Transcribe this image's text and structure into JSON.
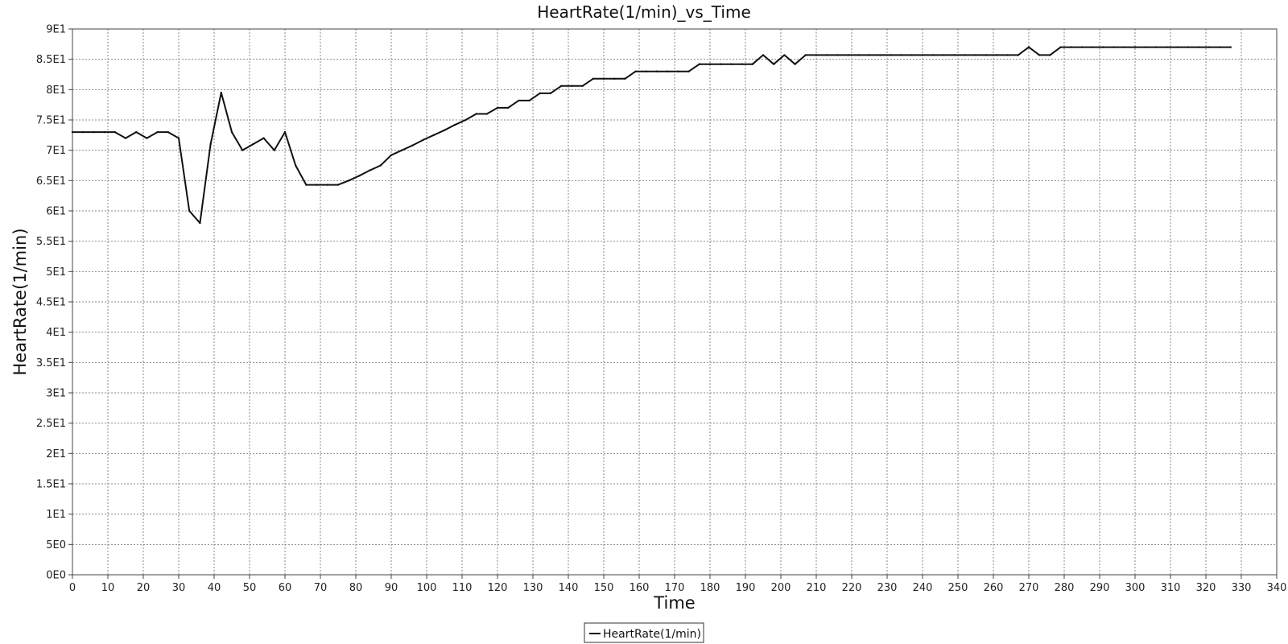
{
  "chart_data": {
    "type": "line",
    "title": "HeartRate(1/min)_vs_Time",
    "xlabel": "Time",
    "ylabel": "HeartRate(1/min)",
    "xlim": [
      0,
      340
    ],
    "ylim": [
      0,
      90
    ],
    "x_ticks": [
      0,
      10,
      20,
      30,
      40,
      50,
      60,
      70,
      80,
      90,
      100,
      110,
      120,
      130,
      140,
      150,
      160,
      170,
      180,
      190,
      200,
      210,
      220,
      230,
      240,
      250,
      260,
      270,
      280,
      290,
      300,
      310,
      320,
      330,
      340
    ],
    "x_tick_labels": [
      "0",
      "10",
      "20",
      "30",
      "40",
      "50",
      "60",
      "70",
      "80",
      "90",
      "100",
      "110",
      "120",
      "130",
      "140",
      "150",
      "160",
      "170",
      "180",
      "190",
      "200",
      "210",
      "220",
      "230",
      "240",
      "250",
      "260",
      "270",
      "280",
      "290",
      "300",
      "310",
      "320",
      "330",
      "340"
    ],
    "y_ticks": [
      0,
      5,
      10,
      15,
      20,
      25,
      30,
      35,
      40,
      45,
      50,
      55,
      60,
      65,
      70,
      75,
      80,
      85,
      90
    ],
    "y_tick_labels": [
      "0E0",
      "5E0",
      "1E1",
      "1.5E1",
      "2E1",
      "2.5E1",
      "3E1",
      "3.5E1",
      "4E1",
      "4.5E1",
      "5E1",
      "5.5E1",
      "6E1",
      "6.5E1",
      "7E1",
      "7.5E1",
      "8E1",
      "8.5E1",
      "9E1"
    ],
    "grid": true,
    "legend_position": "bottom-center",
    "series_color": "#111111",
    "series": [
      {
        "name": "HeartRate(1/min)",
        "x": [
          0,
          3,
          6,
          9,
          12,
          15,
          18,
          21,
          24,
          27,
          30,
          33,
          36,
          39,
          42,
          45,
          48,
          51,
          54,
          57,
          60,
          63,
          66,
          69,
          72,
          75,
          78,
          81,
          84,
          87,
          90,
          93,
          96,
          99,
          102,
          105,
          108,
          111,
          114,
          117,
          120,
          123,
          126,
          129,
          132,
          135,
          138,
          141,
          144,
          147,
          150,
          153,
          156,
          159,
          162,
          165,
          168,
          171,
          174,
          177,
          180,
          183,
          186,
          189,
          192,
          195,
          198,
          201,
          204,
          207,
          210,
          213,
          216,
          219,
          222,
          225,
          228,
          231,
          234,
          237,
          240,
          243,
          246,
          249,
          252,
          255,
          258,
          261,
          264,
          267,
          270,
          273,
          276,
          279,
          282,
          285,
          288,
          291,
          294,
          297,
          300,
          303,
          306,
          309,
          312,
          315,
          318,
          321,
          324,
          327
        ],
        "values": [
          73,
          73,
          73,
          73,
          73,
          72,
          73,
          72,
          73,
          73,
          72,
          60,
          58,
          71,
          79.5,
          73,
          70,
          71,
          72,
          70,
          73,
          67.5,
          64.3,
          64.3,
          64.3,
          64.3,
          65,
          65.8,
          66.7,
          67.5,
          69.2,
          70,
          70.8,
          71.7,
          72.5,
          73.3,
          74.2,
          75,
          76,
          76,
          77,
          77,
          78.2,
          78.2,
          79.4,
          79.4,
          80.6,
          80.6,
          80.6,
          81.8,
          81.8,
          81.8,
          81.8,
          83,
          83,
          83,
          83,
          83,
          83,
          84.2,
          84.2,
          84.2,
          84.2,
          84.2,
          84.2,
          85.7,
          84.2,
          85.7,
          84.2,
          85.7,
          85.7,
          85.7,
          85.7,
          85.7,
          85.7,
          85.7,
          85.7,
          85.7,
          85.7,
          85.7,
          85.7,
          85.7,
          85.7,
          85.7,
          85.7,
          85.7,
          85.7,
          85.7,
          85.7,
          85.7,
          87,
          85.7,
          85.7,
          87,
          87,
          87,
          87,
          87,
          87,
          87,
          87,
          87,
          87,
          87,
          87,
          87,
          87,
          87,
          87,
          87
        ]
      }
    ]
  }
}
